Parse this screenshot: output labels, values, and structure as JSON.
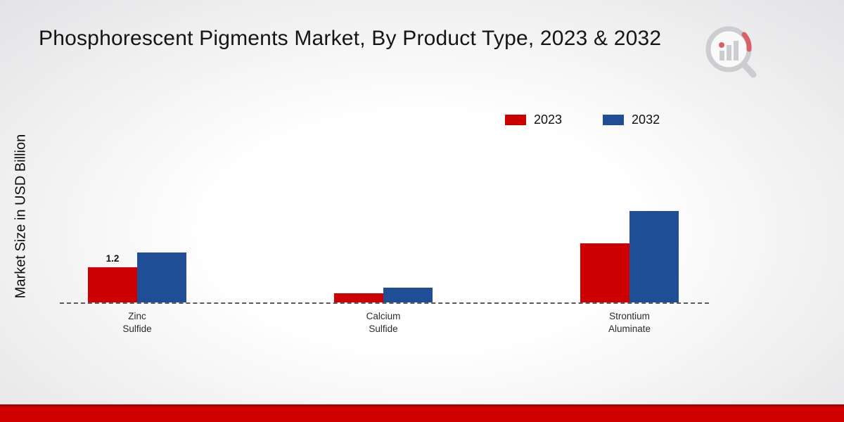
{
  "title": "Phosphorescent Pigments Market, By Product Type, 2023 & 2032",
  "ylabel": "Market Size in USD Billion",
  "colors": {
    "series_2023": "#cc0001",
    "series_2032": "#1f4e96",
    "footer_band": "#d10000",
    "baseline": "#5a5a5e"
  },
  "chart_data": {
    "type": "bar",
    "title": "Phosphorescent Pigments Market, By Product Type, 2023 & 2032",
    "xlabel": "",
    "ylabel": "Market Size in USD Billion",
    "categories": [
      "Zinc Sulfide",
      "Calcium Sulfide",
      "Strontium Aluminate"
    ],
    "series": [
      {
        "name": "2023",
        "color": "#cc0001",
        "values": [
          1.2,
          0.3,
          2.0
        ]
      },
      {
        "name": "2032",
        "color": "#1f4e96",
        "values": [
          1.7,
          0.5,
          3.1
        ]
      }
    ],
    "annotations": [
      {
        "series": "2023",
        "category": "Zinc Sulfide",
        "text": "1.2"
      }
    ],
    "ylim": [
      0,
      4.5
    ],
    "grid": false,
    "legend_position": "top-right",
    "baseline_style": "dashed",
    "y_axis_ticks_visible": false
  }
}
